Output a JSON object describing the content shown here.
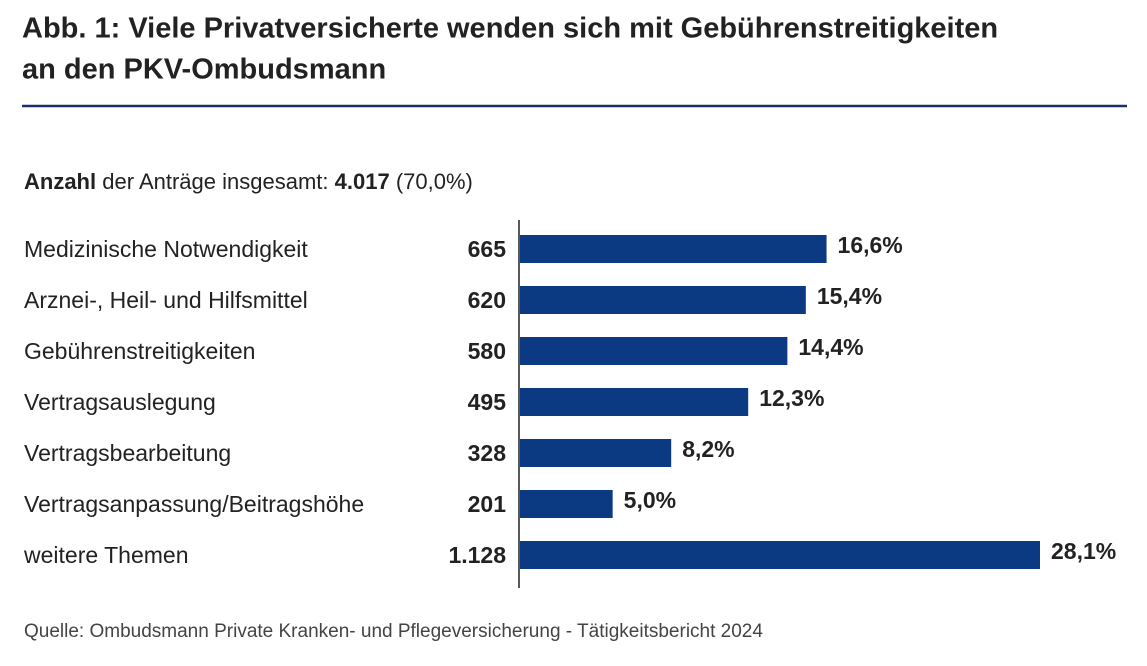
{
  "chart_data": {
    "type": "bar",
    "orientation": "horizontal",
    "title": [
      "Abb. 1: Viele Privatversicherte wenden sich mit Gebührenstreitigkeiten",
      "an den PKV-Ombudsmann"
    ],
    "subtitle": [
      "Anzahl",
      "der Anträge insgesamt:",
      "4.017",
      "(70,0%)"
    ],
    "categories": [
      "Medizinische Notwendigkeit",
      "Arznei-, Heil- und Hilfsmittel",
      "Gebührenstreitigkeiten",
      "Vertragsauslegung",
      "Vertragsbearbeitung",
      "Vertragsanpassung/Beitragshöhe",
      "weitere Themen"
    ],
    "values": [
      665,
      620,
      580,
      495,
      328,
      201,
      1128
    ],
    "value_labels": [
      "665",
      "620",
      "580",
      "495",
      "328",
      "201",
      "1.128"
    ],
    "shares": [
      16.6,
      15.4,
      14.4,
      12.3,
      8.2,
      5.0,
      28.1
    ],
    "share_labels": [
      "16,6%",
      "15,4%",
      "14,4%",
      "12,3%",
      "8,2%",
      "5,0%",
      "28,1%"
    ],
    "color": "#0b3a82",
    "source": "Quelle: Ombudsmann Private Kranken- und Pflegeversicherung - Tätigkeitsbericht 2024"
  }
}
